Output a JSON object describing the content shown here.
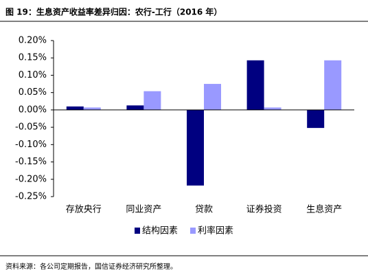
{
  "chart_data": {
    "type": "bar",
    "title": "图 19：生息资产收益率差异归因：农行-工行（2016 年）",
    "source": "资料来源：各公司定期报告，国信证券经济研究所整理。",
    "categories": [
      "存放央行",
      "同业资产",
      "贷款",
      "证券投资",
      "生息资产"
    ],
    "series": [
      {
        "name": "结构因素",
        "color": "#000080",
        "values": [
          0.01,
          0.013,
          -0.218,
          0.143,
          -0.052
        ]
      },
      {
        "name": "利率因素",
        "color": "#9999ff",
        "values": [
          0.007,
          0.054,
          0.075,
          0.007,
          0.143
        ]
      }
    ],
    "ylim": [
      -0.25,
      0.2
    ],
    "yticks": [
      {
        "value": -0.25,
        "label": "-0.25%"
      },
      {
        "value": -0.2,
        "label": "-0.20%"
      },
      {
        "value": -0.15,
        "label": "-0.15%"
      },
      {
        "value": -0.1,
        "label": "-0.10%"
      },
      {
        "value": -0.05,
        "label": "-0.05%"
      },
      {
        "value": 0,
        "label": "0.00%"
      },
      {
        "value": 0.05,
        "label": "0.05%"
      },
      {
        "value": 0.1,
        "label": "0.10%"
      },
      {
        "value": 0.15,
        "label": "0.15%"
      },
      {
        "value": 0.2,
        "label": "0.20%"
      }
    ],
    "legend": "bottom"
  }
}
